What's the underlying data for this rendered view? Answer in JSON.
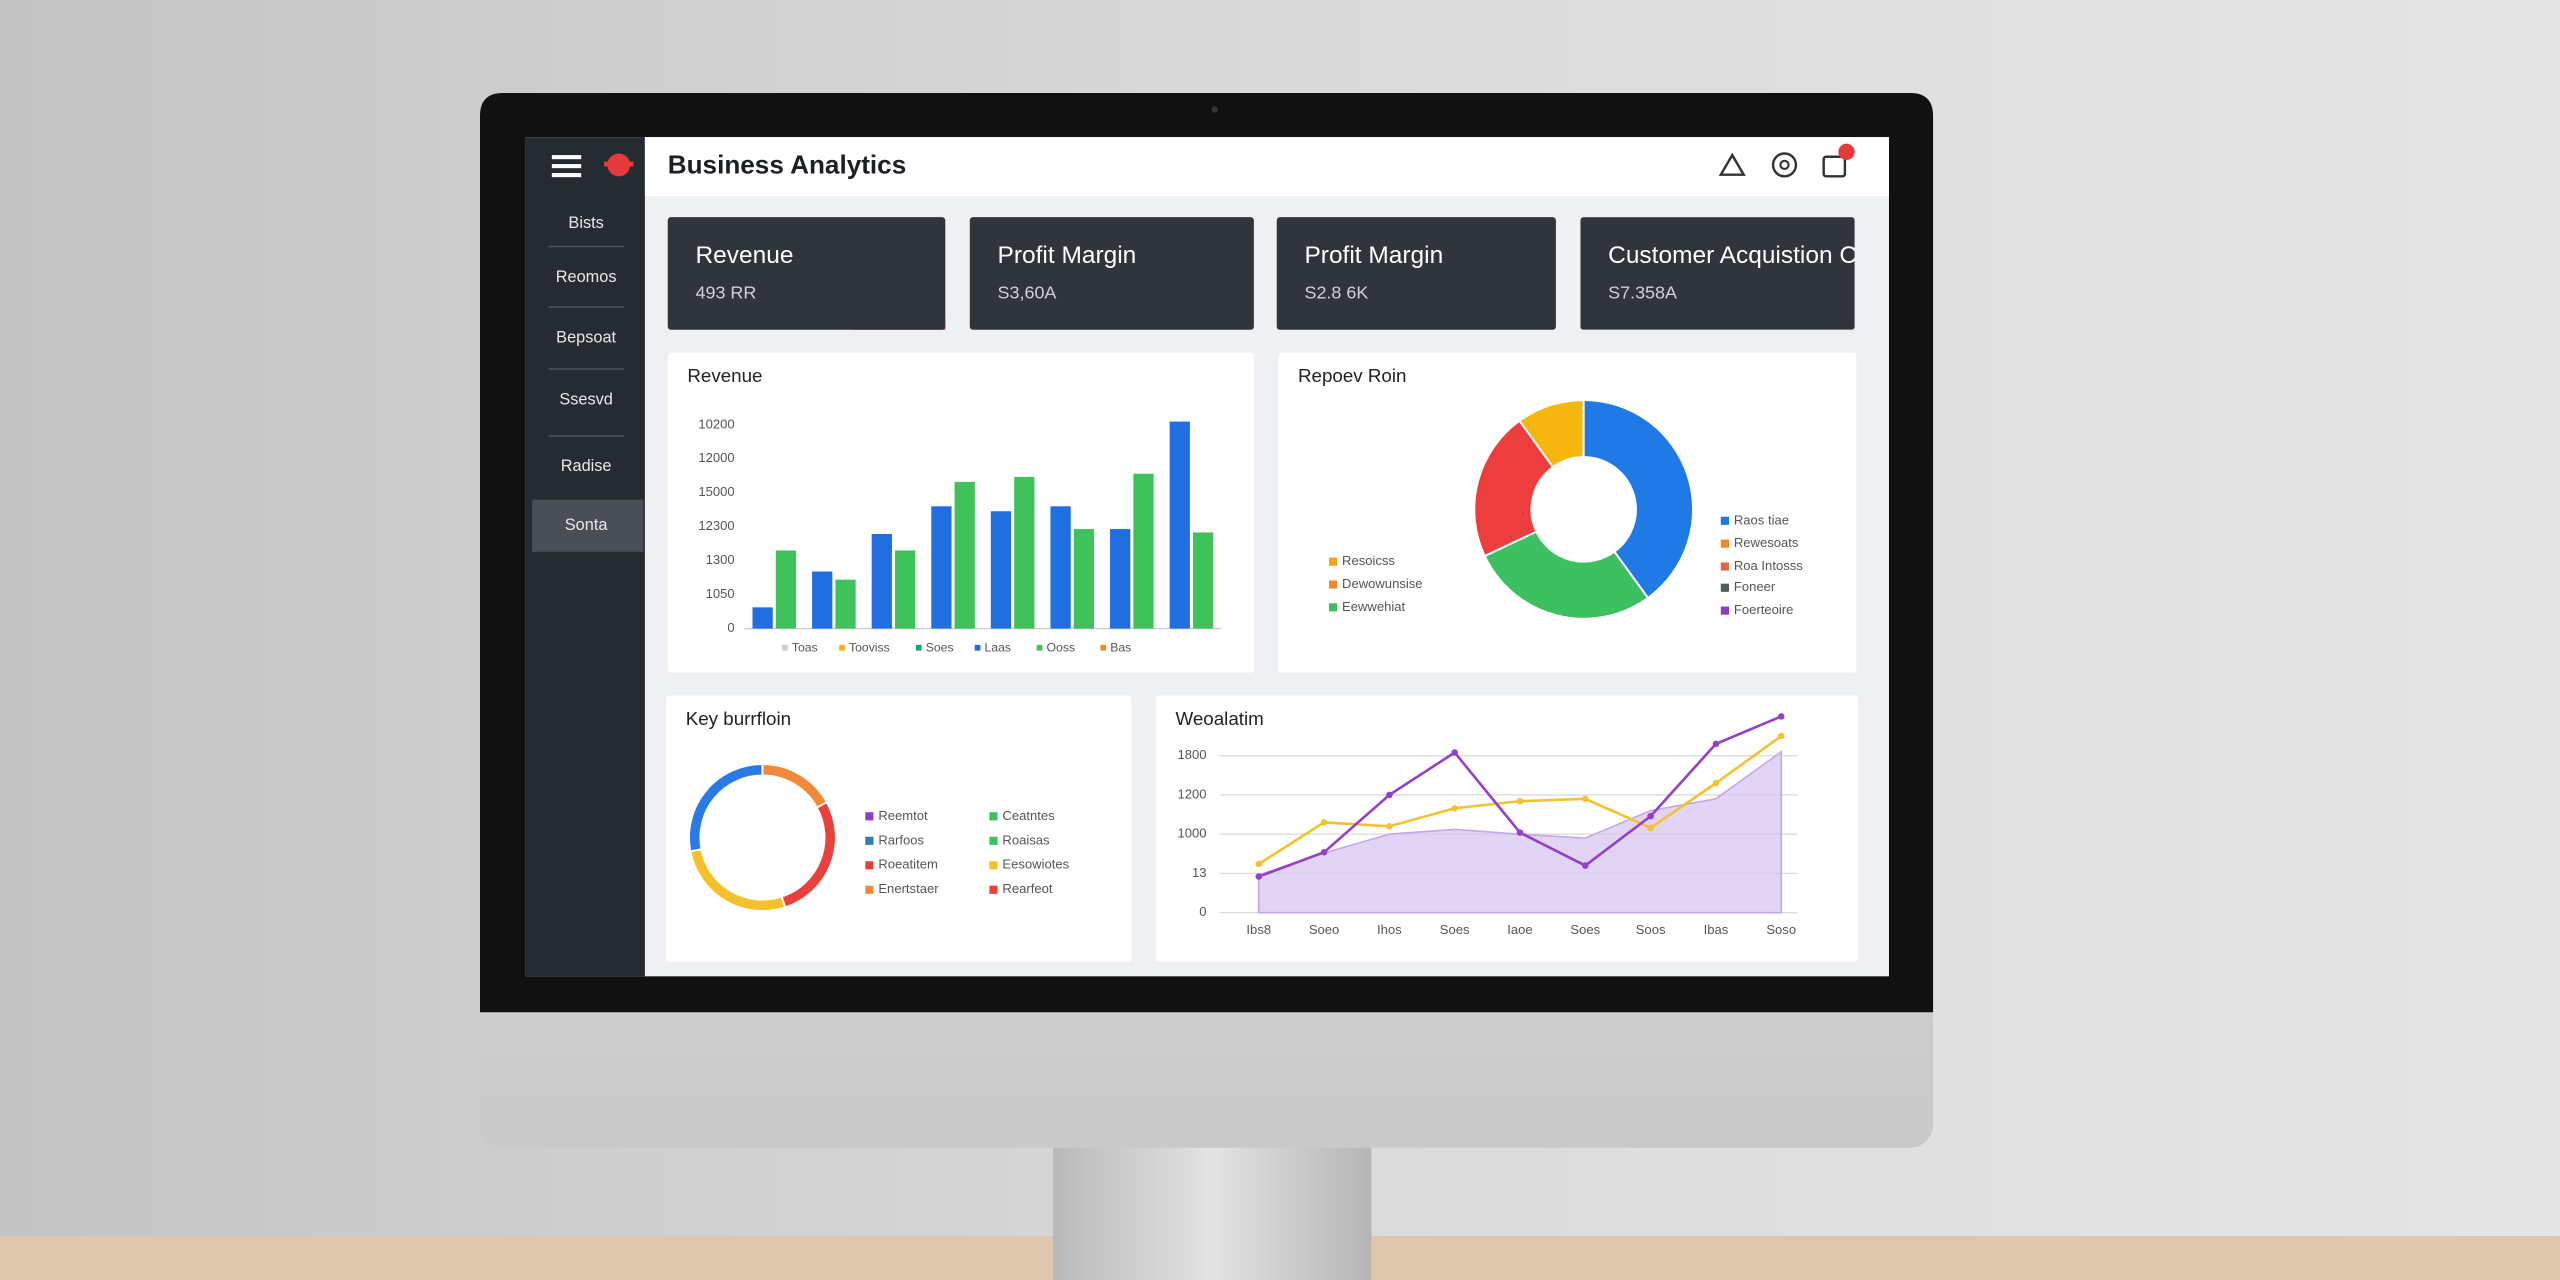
{
  "header": {
    "title": "Business Analytics"
  },
  "sidebar": {
    "items": [
      "Bists",
      "Reomos",
      "Bepsoat",
      "Ssesvd",
      "Radise",
      "Sonta"
    ],
    "active_index": 5
  },
  "kpis": [
    {
      "label": "Revenue",
      "value": "493 RR"
    },
    {
      "label": "Profit Margin",
      "value": "S3,60A"
    },
    {
      "label": "Profit Margin",
      "value": "S2.8 6K"
    },
    {
      "label": "Customer Acquistion Cost",
      "value": "S7.358A"
    }
  ],
  "chart_data": [
    {
      "type": "bar",
      "title": "Revenue",
      "categories": [
        null,
        null,
        null,
        null,
        null,
        null,
        null,
        null
      ],
      "series": [
        {
          "color": "#1f6fe0",
          "values": [
            1250,
            3360,
            5570,
            7200,
            6910,
            7200,
            5860,
            12190
          ]
        },
        {
          "color": "#3fc25a",
          "values": [
            4600,
            2880,
            4600,
            8640,
            8930,
            5860,
            9120,
            5660
          ]
        }
      ],
      "ylim": [
        0,
        12500
      ],
      "yticks": [
        0,
        {
          "value": 2000,
          "label": "1050"
        },
        {
          "value": 4000,
          "label": "1300"
        },
        {
          "value": 6000,
          "label": "12300"
        },
        {
          "value": 8000,
          "label": "15000"
        },
        {
          "value": 10000,
          "label": "12000"
        },
        {
          "value": 12000,
          "label": "10200"
        }
      ],
      "legend": [
        {
          "label": "Toas",
          "color": "#cfcfcf"
        },
        {
          "label": "Tooviss",
          "color": "#f2b418"
        },
        {
          "label": "Soes",
          "color": "#17a673"
        },
        {
          "label": "Laas",
          "color": "#1f6fe0"
        },
        {
          "label": "Ooss",
          "color": "#3fc25a"
        },
        {
          "label": "Bas",
          "color": "#f08a24"
        }
      ]
    },
    {
      "type": "donut",
      "title": "Repoev Roin",
      "values": [
        10,
        40,
        28,
        22
      ],
      "colors": [
        "#f5b60f",
        "#1f7ae6",
        "#3cc062",
        "#ee3d3d"
      ],
      "start_angle": -36,
      "legend": [
        {
          "label": "Resoicss",
          "color": "#f5a31a"
        },
        {
          "label": "Dewowunsise",
          "color": "#f08a24"
        },
        {
          "label": "Eewwehiat",
          "color": "#3cc062"
        },
        {
          "label": "Raos tiae",
          "color": "#1f7ae6"
        },
        {
          "label": "Rewesoats",
          "color": "#f08a24"
        },
        {
          "label": "Roa Intosss",
          "color": "#e2674a"
        },
        {
          "label": "Foneer",
          "color": "#555c55"
        },
        {
          "label": "Foerteoire",
          "color": "#8e3fc4"
        }
      ]
    },
    {
      "type": "donut",
      "title": "Key burrfloin",
      "values": [
        17,
        28,
        27,
        28
      ],
      "colors": [
        "#f08a3a",
        "#e8413d",
        "#f5c12a",
        "#2979e6"
      ],
      "start_angle": 0,
      "legend": [
        {
          "label": "Reemtot",
          "color": "#8e3fc4"
        },
        {
          "label": "Rarfoos",
          "color": "#2f7fa8"
        },
        {
          "label": "Roeatitem",
          "color": "#e8413d"
        },
        {
          "label": "Enertstaer",
          "color": "#f08a3a"
        },
        {
          "label": "Ceatntes",
          "color": "#3cc062"
        },
        {
          "label": "Roaisas",
          "color": "#3cc062"
        },
        {
          "label": "Eesowiotes",
          "color": "#f5c12a"
        },
        {
          "label": "Rearfeot",
          "color": "#e8413d"
        }
      ]
    },
    {
      "type": "line",
      "title": "Weoalatim",
      "categories": [
        "Ibs8",
        "Soeo",
        "Ihos",
        "Soes",
        "Iaoe",
        "Soes",
        "Soos",
        "Ibas",
        "Soso"
      ],
      "series": [
        {
          "color": "#d8c6f0",
          "fill": true,
          "values": [
            480,
            760,
            1000,
            1060,
            1000,
            950,
            1300,
            1450,
            2050
          ]
        },
        {
          "color": "#f2c230",
          "values": [
            620,
            1150,
            1100,
            1330,
            1420,
            1450,
            1080,
            1650,
            2250
          ]
        },
        {
          "color": "#9440c8",
          "values": [
            460,
            770,
            1500,
            2040,
            1020,
            600,
            1230,
            2150,
            2500
          ]
        }
      ],
      "ylim": [
        0,
        2600
      ],
      "yticks": [
        0,
        {
          "value": 500,
          "label": "13"
        },
        1000,
        {
          "value": 1500,
          "label": "1200"
        },
        {
          "value": 2000,
          "label": "1800"
        }
      ],
      "grid": true
    }
  ]
}
